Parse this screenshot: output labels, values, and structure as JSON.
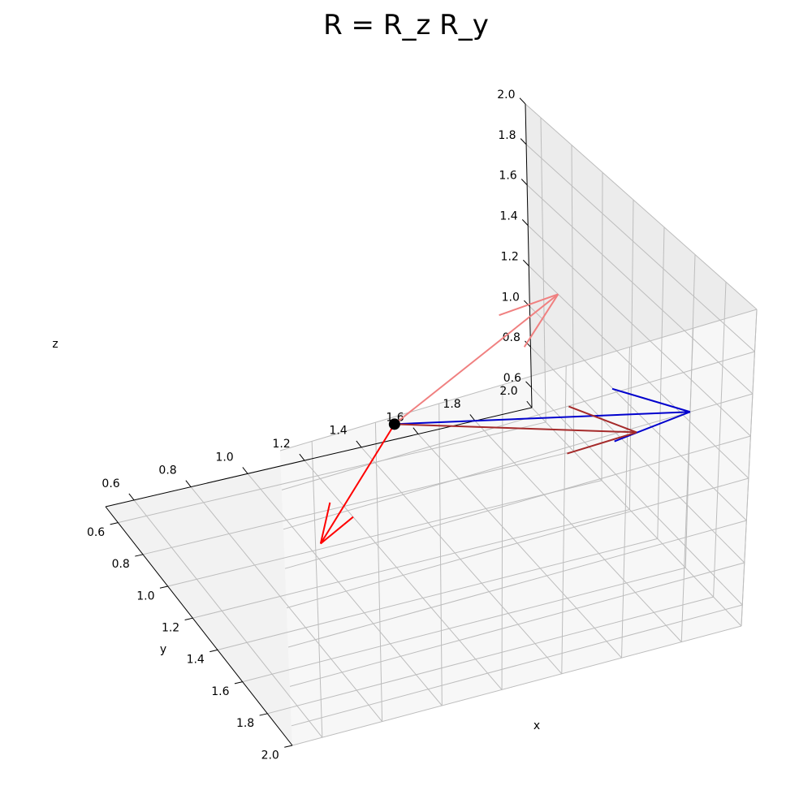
{
  "chart_data": {
    "type": "3d-vector-plot",
    "title": "R = R_z R_y",
    "xlabel": "x",
    "ylabel": "y",
    "zlabel": "z",
    "xlim": [
      0.5,
      2.0
    ],
    "ylim": [
      0.5,
      2.0
    ],
    "zlim": [
      0.5,
      2.0
    ],
    "x_ticks": [
      "0.6",
      "0.8",
      "1.0",
      "1.2",
      "1.4",
      "1.6",
      "1.8",
      "2.0"
    ],
    "y_ticks": [
      "0.6",
      "0.8",
      "1.0",
      "1.2",
      "1.4",
      "1.6",
      "1.8",
      "2.0"
    ],
    "z_ticks": [
      "0.6",
      "0.8",
      "1.0",
      "1.2",
      "1.4",
      "1.6",
      "1.8",
      "2.0"
    ],
    "grid": true,
    "origin_point": {
      "x": 1.2,
      "y": 1.2,
      "z": 1.2,
      "color": "#000000"
    },
    "vectors": [
      {
        "color": "#f08080",
        "start": [
          1.2,
          1.2,
          1.2
        ],
        "end": [
          0.7,
          2.0,
          1.2
        ]
      },
      {
        "color": "#ff0000",
        "start": [
          1.2,
          1.2,
          1.2
        ],
        "end": [
          1.3,
          0.9,
          0.8
        ]
      },
      {
        "color": "#0000cd",
        "start": [
          1.2,
          1.2,
          1.2
        ],
        "end": [
          2.0,
          1.8,
          1.6
        ]
      },
      {
        "color": "#a52a2a",
        "start": [
          1.2,
          1.2,
          1.2
        ],
        "end": [
          1.75,
          1.75,
          1.35
        ]
      }
    ]
  }
}
